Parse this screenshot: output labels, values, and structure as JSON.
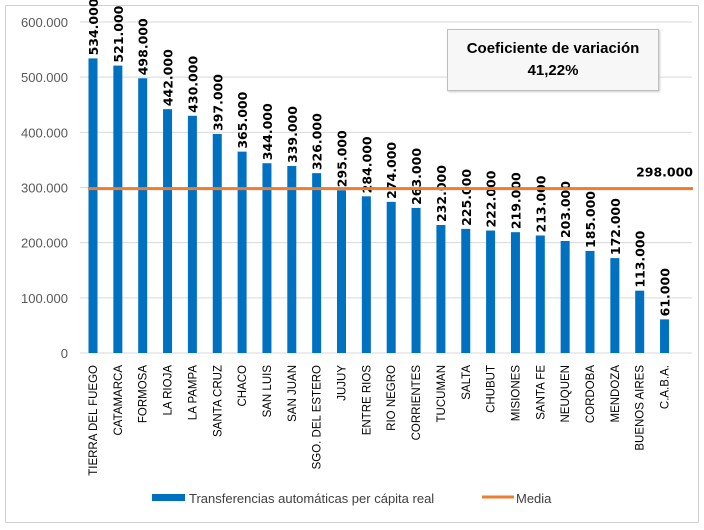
{
  "chart_data": {
    "type": "bar",
    "categories": [
      "TIERRA DEL FUEGO",
      "CATAMARCA",
      "FORMOSA",
      "LA RIOJA",
      "LA PAMPA",
      "SANTA CRUZ",
      "CHACO",
      "SAN LUIS",
      "SAN JUAN",
      "SGO. DEL ESTERO",
      "JUJUY",
      "ENTRE RIOS",
      "RIO NEGRO",
      "CORRIENTES",
      "TUCUMAN",
      "SALTA",
      "CHUBUT",
      "MISIONES",
      "SANTA FE",
      "NEUQUEN",
      "CORDOBA",
      "MENDOZA",
      "BUENOS AIRES",
      "C.A.B.A."
    ],
    "series": [
      {
        "name": "Transferencias automáticas per cápita real",
        "color": "#0070c0",
        "values": [
          534000,
          521000,
          498000,
          442000,
          430000,
          397000,
          365000,
          344000,
          339000,
          326000,
          295000,
          284000,
          274000,
          263000,
          232000,
          225000,
          222000,
          219000,
          213000,
          203000,
          185000,
          172000,
          113000,
          61000
        ],
        "labels": [
          "534.000",
          "521.000",
          "498.000",
          "442.000",
          "430.000",
          "397.000",
          "365.000",
          "344.000",
          "339.000",
          "326.000",
          "295.000",
          "284.000",
          "274.000",
          "263.000",
          "232.000",
          "225.000",
          "222.000",
          "219.000",
          "213.000",
          "203.000",
          "185.000",
          "172.000",
          "113.000",
          "61.000"
        ]
      },
      {
        "name": "Media",
        "color": "#ed7d31",
        "value": 298000,
        "label": "298.000"
      }
    ],
    "ylim": [
      0,
      600000
    ],
    "yticks": [
      0,
      100000,
      200000,
      300000,
      400000,
      500000,
      600000
    ],
    "ytick_labels": [
      "0",
      "100.000",
      "200.000",
      "300.000",
      "400.000",
      "500.000",
      "600.000"
    ],
    "grid": true,
    "legend": "bottom",
    "annotation": {
      "title": "Coeficiente de variación",
      "value": "41,22%"
    }
  }
}
